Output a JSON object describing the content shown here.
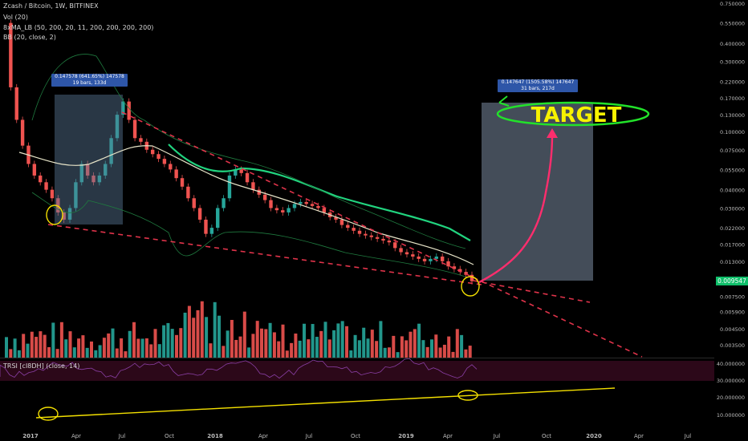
{
  "header": {
    "symbol_line": "Zcash / Bitcoin, 1W, BITFINEX",
    "indicators": [
      "Vol (20)",
      "8xMA_LB (50, 200, 20, 11, 200, 200, 200, 200)",
      "BB (20, close, 2)"
    ],
    "rsi_label": "TRSI [cI8DH] (close, 14)"
  },
  "annotations": {
    "target_label": "TARGET",
    "measure_left": {
      "line1": "0.147578 (641.65%) 147578",
      "line2": "19 bars, 133d"
    },
    "measure_right": {
      "line1": "0.147647 (1505.58%) 147647",
      "line2": "31 bars, 217d"
    },
    "last_price": "0.009547"
  },
  "chart_data": {
    "type": "line",
    "title": "Zcash / Bitcoin, 1W, BITFINEX",
    "x_ticks": [
      "2017",
      "Apr",
      "Jul",
      "Oct",
      "2018",
      "Apr",
      "Jul",
      "Oct",
      "2019",
      "Apr",
      "Jul",
      "Oct",
      "2020",
      "Apr",
      "Jul"
    ],
    "price_axis": [
      "0.750000",
      "0.550000",
      "0.400000",
      "0.300000",
      "0.220000",
      "0.170000",
      "0.130000",
      "0.100000",
      "0.075000",
      "0.055000",
      "0.040000",
      "0.030000",
      "0.022000",
      "0.017000",
      "0.013000",
      "0.009547",
      "0.007500",
      "0.005900",
      "0.004500",
      "0.003500"
    ],
    "rsi_axis": [
      "40.000000",
      "30.000000",
      "20.000000",
      "10.000000"
    ],
    "scale": "log",
    "series": [
      {
        "values": [
          0.55,
          0.2,
          0.12,
          0.08,
          0.06,
          0.05,
          0.045,
          0.04,
          0.035,
          0.028,
          0.025,
          0.03,
          0.045,
          0.06,
          0.05,
          0.045,
          0.05,
          0.06,
          0.09,
          0.13,
          0.16,
          0.12,
          0.09,
          0.085,
          0.075,
          0.07,
          0.065,
          0.06,
          0.055,
          0.048,
          0.042,
          0.035,
          0.03,
          0.025,
          0.02,
          0.022,
          0.03,
          0.035,
          0.05,
          0.055,
          0.052,
          0.045,
          0.04,
          0.037,
          0.034,
          0.03,
          0.029,
          0.028,
          0.03,
          0.032,
          0.033,
          0.032,
          0.031,
          0.03,
          0.028,
          0.026,
          0.025,
          0.023,
          0.022,
          0.021,
          0.02,
          0.0195,
          0.019,
          0.0185,
          0.018,
          0.0175,
          0.016,
          0.015,
          0.0145,
          0.014,
          0.0135,
          0.013,
          0.0135,
          0.014,
          0.013,
          0.012,
          0.0115,
          0.011,
          0.0105,
          0.0095
        ]
      }
    ]
  }
}
